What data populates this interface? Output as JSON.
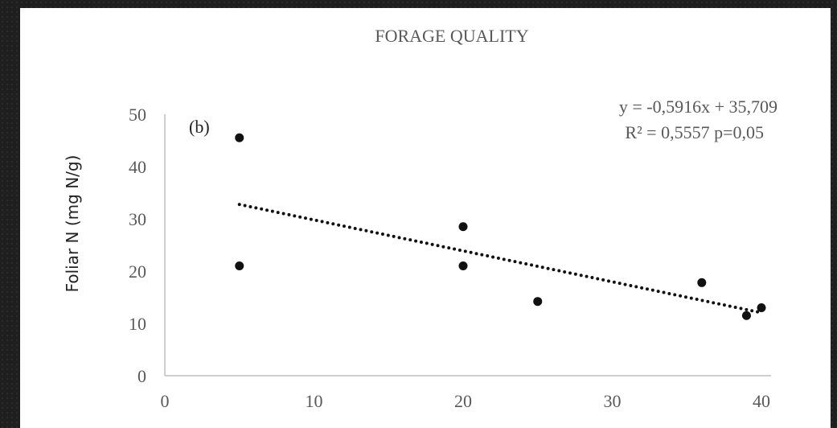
{
  "chart_data": {
    "type": "scatter",
    "title": "FORAGE QUALITY",
    "panel_label": "(b)",
    "ylabel": "Foliar N (mg N/g)",
    "xlabel": "",
    "xlim": [
      0,
      40
    ],
    "ylim": [
      0,
      50
    ],
    "x_ticks": [
      "0",
      "10",
      "20",
      "30",
      "40"
    ],
    "y_ticks": [
      "0",
      "10",
      "20",
      "30",
      "40",
      "50"
    ],
    "grid": false,
    "points": [
      {
        "x": 5,
        "y": 45.5
      },
      {
        "x": 5,
        "y": 21
      },
      {
        "x": 20,
        "y": 28.5
      },
      {
        "x": 20,
        "y": 21
      },
      {
        "x": 25,
        "y": 14.2
      },
      {
        "x": 36,
        "y": 17.8
      },
      {
        "x": 39,
        "y": 11.5
      },
      {
        "x": 40,
        "y": 13
      }
    ],
    "trendline": {
      "style": "dotted",
      "slope": -0.5916,
      "intercept": 35.709,
      "x_range": [
        5,
        40
      ],
      "equation": "y = -0,5916x + 35,709",
      "stats": "R² = 0,5557 p=0,05"
    }
  },
  "colors": {
    "background": "#1f1f1f",
    "panel": "#ffffff",
    "points": "#111111",
    "trendline": "#111111",
    "axis": "#bfbfbf",
    "text": "#595959"
  }
}
